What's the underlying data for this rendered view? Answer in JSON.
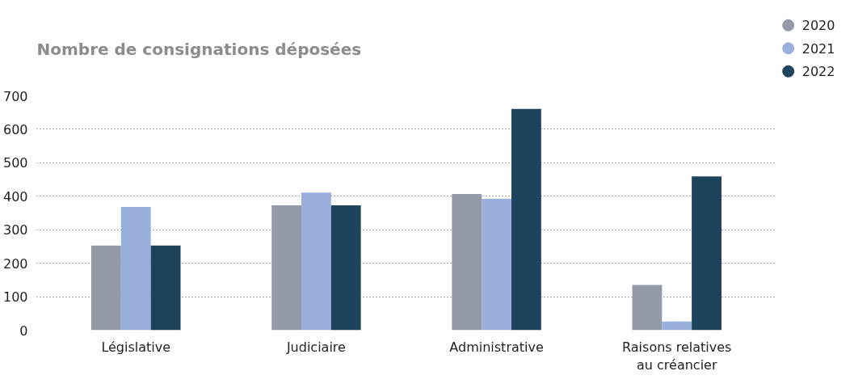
{
  "chart_data": {
    "type": "bar",
    "title": "Nombre de consignations déposées",
    "categories": [
      "Législative",
      "Judiciaire",
      "Administrative",
      "Raisons relatives\nau créancier"
    ],
    "series": [
      {
        "name": "2020",
        "color": "#959aa8",
        "values": [
          253,
          373,
          407,
          135
        ]
      },
      {
        "name": "2021",
        "color": "#9aafdb",
        "values": [
          368,
          411,
          392,
          26
        ]
      },
      {
        "name": "2022",
        "color": "#1e435c",
        "values": [
          253,
          373,
          661,
          459
        ]
      }
    ],
    "ylim": [
      0,
      700
    ],
    "yticks": [
      0,
      100,
      200,
      300,
      400,
      500,
      600,
      700
    ],
    "grid": "y",
    "legend": "top right"
  }
}
